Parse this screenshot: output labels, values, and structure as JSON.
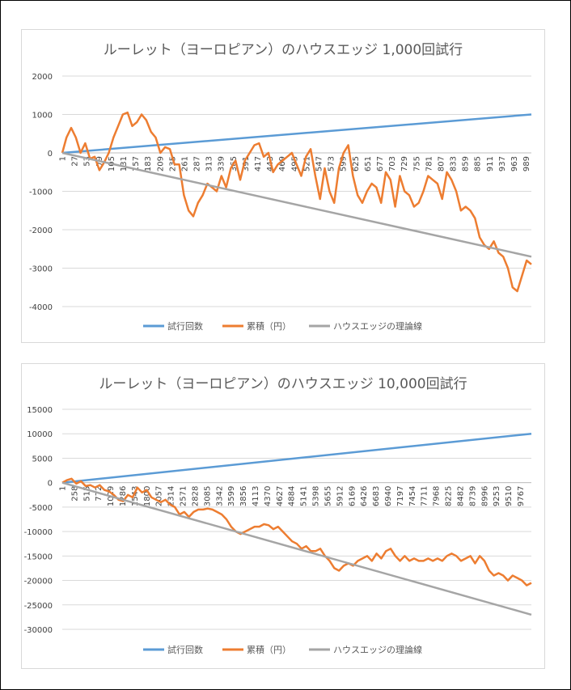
{
  "chart_data": [
    {
      "type": "line",
      "title": "ルーレット（ヨーロピアン）のハウスエッジ 1,000回試行",
      "trials": 1000,
      "ylim": [
        -4000,
        2000
      ],
      "yticks": [
        2000,
        1000,
        0,
        -1000,
        -2000,
        -3000,
        -4000
      ],
      "ytick_labels": [
        "2000",
        "1000",
        "0",
        "-1000",
        "-2000",
        "-3000",
        "-4000"
      ],
      "xticks": [
        1,
        27,
        53,
        79,
        105,
        131,
        157,
        183,
        209,
        235,
        261,
        287,
        313,
        339,
        365,
        391,
        417,
        443,
        469,
        495,
        521,
        547,
        573,
        599,
        625,
        651,
        677,
        703,
        729,
        755,
        781,
        807,
        833,
        859,
        885,
        911,
        937,
        963,
        989
      ],
      "xtick_labels": [
        "1",
        "27",
        "53",
        "79",
        "105",
        "131",
        "157",
        "183",
        "209",
        "235",
        "261",
        "287",
        "313",
        "339",
        "365",
        "391",
        "417",
        "443",
        "469",
        "495",
        "521",
        "547",
        "573",
        "599",
        "625",
        "651",
        "677",
        "703",
        "729",
        "755",
        "781",
        "807",
        "833",
        "859",
        "885",
        "911",
        "937",
        "963",
        "989"
      ],
      "series": [
        {
          "name": "試行回数",
          "color": "#5b9bd5",
          "x": [
            1,
            1000
          ],
          "values": [
            1,
            1000
          ]
        },
        {
          "name": "累積（円）",
          "color": "#ed7d31",
          "x": [
            1,
            10,
            20,
            30,
            40,
            50,
            60,
            70,
            80,
            90,
            100,
            110,
            120,
            130,
            140,
            150,
            160,
            170,
            180,
            190,
            200,
            210,
            220,
            230,
            240,
            250,
            260,
            270,
            280,
            290,
            300,
            310,
            320,
            330,
            340,
            350,
            360,
            370,
            380,
            390,
            400,
            410,
            420,
            430,
            440,
            450,
            460,
            470,
            480,
            490,
            500,
            510,
            520,
            530,
            540,
            550,
            560,
            570,
            580,
            590,
            600,
            610,
            620,
            630,
            640,
            650,
            660,
            670,
            680,
            690,
            700,
            710,
            720,
            730,
            740,
            750,
            760,
            770,
            780,
            790,
            800,
            810,
            820,
            830,
            840,
            850,
            860,
            870,
            880,
            890,
            900,
            910,
            920,
            930,
            940,
            950,
            960,
            970,
            980,
            990,
            1000
          ],
          "values": [
            0,
            400,
            650,
            400,
            0,
            250,
            -150,
            -100,
            -450,
            -250,
            0,
            400,
            700,
            1000,
            1050,
            700,
            800,
            1000,
            850,
            550,
            400,
            0,
            150,
            100,
            -300,
            -300,
            -1100,
            -1500,
            -1650,
            -1300,
            -1100,
            -800,
            -900,
            -1000,
            -600,
            -900,
            -400,
            -200,
            -700,
            -200,
            0,
            200,
            250,
            -100,
            0,
            -500,
            -300,
            -200,
            -100,
            0,
            -300,
            -600,
            -100,
            100,
            -600,
            -1200,
            -400,
            -1000,
            -1300,
            -400,
            0,
            200,
            -600,
            -1100,
            -1300,
            -1000,
            -800,
            -900,
            -1300,
            -500,
            -700,
            -1400,
            -600,
            -1000,
            -1100,
            -1400,
            -1300,
            -1000,
            -600,
            -700,
            -800,
            -1200,
            -500,
            -700,
            -1000,
            -1500,
            -1400,
            -1500,
            -1700,
            -2200,
            -2400,
            -2500,
            -2300,
            -2600,
            -2700,
            -3000,
            -3500,
            -3600,
            -3200,
            -2800,
            -2900
          ]
        },
        {
          "name": "ハウスエッジの理論線",
          "color": "#a5a5a5",
          "x": [
            1,
            1000
          ],
          "values": [
            0,
            -2700
          ]
        }
      ],
      "legend": [
        "試行回数",
        "累積（円）",
        "ハウスエッジの理論線"
      ],
      "legend_position": "bottom"
    },
    {
      "type": "line",
      "title": "ルーレット（ヨーロピアン）のハウスエッジ 10,000回試行",
      "trials": 10000,
      "ylim": [
        -30000,
        15000
      ],
      "yticks": [
        15000,
        10000,
        5000,
        0,
        -5000,
        -10000,
        -15000,
        -20000,
        -25000,
        -30000
      ],
      "ytick_labels": [
        "15000",
        "10000",
        "5000",
        "0",
        "-5000",
        "-10000",
        "-15000",
        "-20000",
        "-25000",
        "-30000"
      ],
      "xticks": [
        1,
        258,
        515,
        772,
        1029,
        1286,
        1543,
        1800,
        2057,
        2314,
        2571,
        2828,
        3085,
        3342,
        3599,
        3856,
        4113,
        4370,
        4627,
        4884,
        5141,
        5398,
        5655,
        5912,
        6169,
        6426,
        6683,
        6940,
        7197,
        7454,
        7711,
        7968,
        8225,
        8482,
        8739,
        8996,
        9253,
        9510,
        9767
      ],
      "xtick_labels": [
        "1",
        "258",
        "515",
        "772",
        "1029",
        "1286",
        "1543",
        "1800",
        "2057",
        "2314",
        "2571",
        "2828",
        "3085",
        "3342",
        "3599",
        "3856",
        "4113",
        "4370",
        "4627",
        "4884",
        "5141",
        "5398",
        "5655",
        "5912",
        "6169",
        "6426",
        "6683",
        "6940",
        "7197",
        "7454",
        "7711",
        "7968",
        "8225",
        "8482",
        "8739",
        "8996",
        "9253",
        "9510",
        "9767"
      ],
      "series": [
        {
          "name": "試行回数",
          "color": "#5b9bd5",
          "x": [
            1,
            10000
          ],
          "values": [
            1,
            10000
          ]
        },
        {
          "name": "累積（円）",
          "color": "#ed7d31",
          "x": [
            1,
            100,
            200,
            300,
            400,
            500,
            600,
            700,
            800,
            900,
            1000,
            1100,
            1200,
            1300,
            1400,
            1500,
            1600,
            1700,
            1800,
            1900,
            2000,
            2100,
            2200,
            2300,
            2400,
            2500,
            2600,
            2700,
            2800,
            2900,
            3000,
            3100,
            3200,
            3300,
            3400,
            3500,
            3600,
            3700,
            3800,
            3900,
            4000,
            4100,
            4200,
            4300,
            4400,
            4500,
            4600,
            4700,
            4800,
            4900,
            5000,
            5100,
            5200,
            5300,
            5400,
            5500,
            5600,
            5700,
            5800,
            5900,
            6000,
            6100,
            6200,
            6300,
            6400,
            6500,
            6600,
            6700,
            6800,
            6900,
            7000,
            7100,
            7200,
            7300,
            7400,
            7500,
            7600,
            7700,
            7800,
            7900,
            8000,
            8100,
            8200,
            8300,
            8400,
            8500,
            8600,
            8700,
            8800,
            8900,
            9000,
            9100,
            9200,
            9300,
            9400,
            9500,
            9600,
            9700,
            9800,
            9900,
            10000
          ],
          "values": [
            0,
            500,
            800,
            -200,
            300,
            -700,
            -500,
            -1000,
            -500,
            -1500,
            -1800,
            -2500,
            -3500,
            -3800,
            -2500,
            -3000,
            -1000,
            -2000,
            -1500,
            -3000,
            -3500,
            -4000,
            -3500,
            -4500,
            -5000,
            -6500,
            -6000,
            -7000,
            -6000,
            -5500,
            -5500,
            -5300,
            -5500,
            -6000,
            -6500,
            -7500,
            -9000,
            -10000,
            -10500,
            -10000,
            -9500,
            -9000,
            -9000,
            -8500,
            -8700,
            -9500,
            -9000,
            -10000,
            -11000,
            -12000,
            -12500,
            -13500,
            -13000,
            -14000,
            -14000,
            -13500,
            -15000,
            -16000,
            -17500,
            -18000,
            -17000,
            -16500,
            -17000,
            -16000,
            -15500,
            -15000,
            -16000,
            -14500,
            -15500,
            -14000,
            -13500,
            -15000,
            -16000,
            -15000,
            -16000,
            -15500,
            -16000,
            -16000,
            -15500,
            -16000,
            -15500,
            -16000,
            -15000,
            -14500,
            -15000,
            -16000,
            -15500,
            -15000,
            -16500,
            -15000,
            -16000,
            -18000,
            -19000,
            -18500,
            -19000,
            -20000,
            -19000,
            -19500,
            -20000,
            -21000,
            -20500
          ]
        },
        {
          "name": "ハウスエッジの理論線",
          "color": "#a5a5a5",
          "x": [
            1,
            10000
          ],
          "values": [
            0,
            -27000
          ]
        }
      ],
      "legend": [
        "試行回数",
        "累積（円）",
        "ハウスエッジの理論線"
      ],
      "legend_position": "bottom"
    }
  ]
}
